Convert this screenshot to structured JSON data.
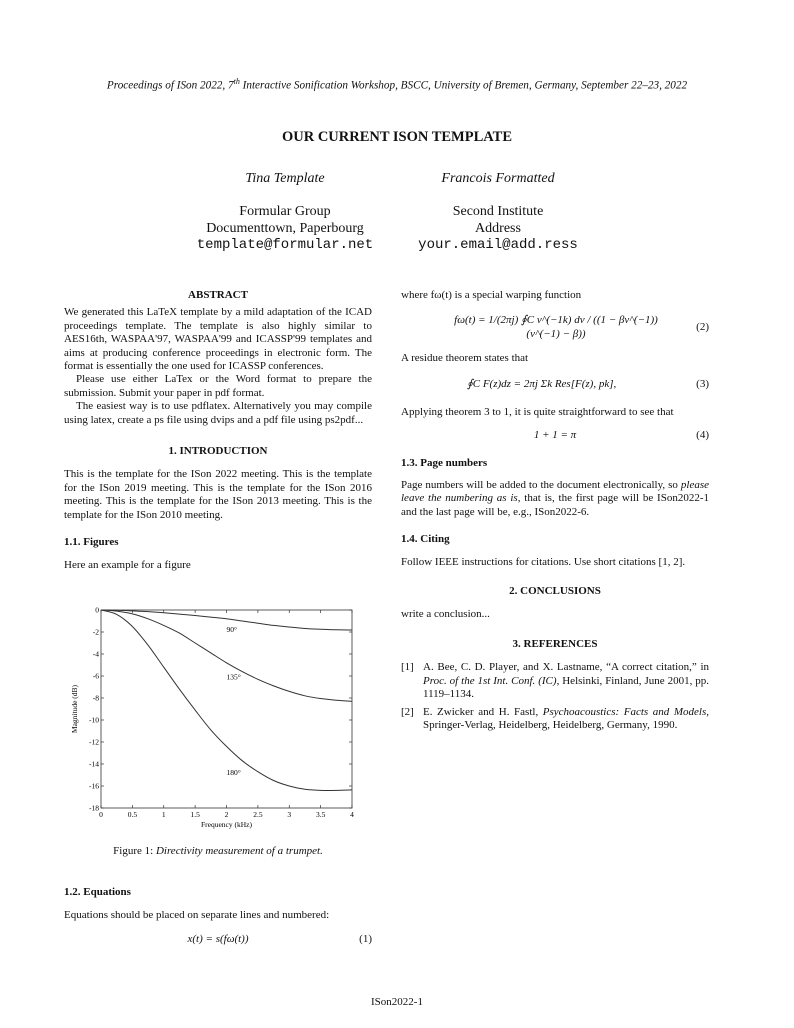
{
  "header": "Proceedings of ISon 2022, 7th Interactive Sonification Workshop, BSCC, University of Bremen, Germany, September 22–23, 2022",
  "header_pre": "Proceedings of ISon 2022, 7",
  "header_sup": "th",
  "header_post": " Interactive Sonification Workshop, BSCC, University of Bremen, Germany, September 22–23, 2022",
  "title": "OUR CURRENT ISON TEMPLATE",
  "authors": [
    {
      "name": "Tina Template",
      "org": "Formular Group",
      "address": "Documenttown, Paperbourg",
      "email": "template@formular.net"
    },
    {
      "name": "Francois Formatted",
      "org": "Second Institute",
      "address": "Address",
      "email": "your.email@add.ress"
    }
  ],
  "abstract": {
    "heading": "ABSTRACT",
    "paragraphs": [
      "We generated this LaTeX template by a mild adaptation of the ICAD proceedings template. The template is also highly similar to AES16th, WASPAA'97, WASPAA'99 and ICASSP'99 templates and aims at producing conference proceedings in electronic form. The format is essentially the one used for ICASSP conferences.",
      "Please use either LaTex or the Word format to prepare the submission. Submit your paper in pdf format.",
      "The easiest way is to use pdflatex. Alternatively you may compile using latex, create a ps file using dvips and a pdf file using ps2pdf..."
    ]
  },
  "intro": {
    "heading": "1. INTRODUCTION",
    "text": "This is the template for the ISon 2022 meeting. This is the template for the ISon 2019 meeting. This is the template for the ISon 2016 meeting. This is the template for the ISon 2013 meeting. This is the template for the ISon 2010 meeting."
  },
  "figures": {
    "heading": "1.1.  Figures",
    "text": "Here an example for a figure",
    "caption_label": "Figure 1: ",
    "caption": "Directivity measurement of a trumpet."
  },
  "equations": {
    "heading": "1.2.  Equations",
    "text": "Equations should be placed on separate lines and numbered:",
    "eq1": "x(t) = s(fω(t))",
    "eq1_num": "(1)"
  },
  "right": {
    "warp_text": "where fω(t) is a special warping function",
    "eq2": "fω(t) = 1/(2πj) ∮C ν^(−1k) dν / ((1 − βν^(−1))(ν^(−1) − β))",
    "eq2_num": "(2)",
    "residue_text": "A residue theorem states that",
    "eq3": "∮C F(z)dz = 2πj Σk Res[F(z), pk],",
    "eq3_num": "(3)",
    "apply_text": "Applying theorem 3 to 1, it is quite straightforward to see that",
    "eq4": "1 + 1 = π",
    "eq4_num": "(4)"
  },
  "page_numbers": {
    "heading": "1.3.  Page numbers",
    "pre": "Page numbers will be added to the document electronically, so ",
    "em": "please leave the numbering as is",
    "post": ", that is, the first page will be ISon2022-1 and the last page will be, e.g., ISon2022-6."
  },
  "citing": {
    "heading": "1.4.  Citing",
    "text": "Follow IEEE instructions for citations. Use short citations [1, 2]."
  },
  "conclusions": {
    "heading": "2. CONCLUSIONS",
    "text": "write a conclusion..."
  },
  "references": {
    "heading": "3. REFERENCES",
    "items": [
      {
        "num": "[1]",
        "pre": "A. Bee, C. D. Player, and X. Lastname, “A correct citation,” in ",
        "em": "Proc. of the 1st Int. Conf. (IC)",
        "post": ", Helsinki, Finland, June 2001, pp. 1119–1134."
      },
      {
        "num": "[2]",
        "pre": "E. Zwicker and H. Fastl, ",
        "em": "Psychoacoustics: Facts and Models",
        "post": ", Springer-Verlag, Heidelberg, Heidelberg, Germany, 1990."
      }
    ]
  },
  "footer": "ISon2022-1",
  "chart_data": {
    "type": "line",
    "title": "",
    "xlabel": "Frequency (kHz)",
    "ylabel": "Magnitude (dB)",
    "xlim": [
      0,
      4
    ],
    "ylim": [
      -18,
      0
    ],
    "xticks": [
      "0",
      "0.5",
      "1",
      "1.5",
      "2",
      "2.5",
      "3",
      "3.5",
      "4"
    ],
    "yticks": [
      "0",
      "-2",
      "-4",
      "-6",
      "-8",
      "-10",
      "-12",
      "-14",
      "-16",
      "-18"
    ],
    "grid": false,
    "x": [
      0,
      0.25,
      0.5,
      0.75,
      1,
      1.25,
      1.5,
      1.75,
      2,
      2.25,
      2.5,
      2.75,
      3,
      3.25,
      3.5,
      3.75,
      4
    ],
    "series": [
      {
        "values": [
          0,
          -0.02,
          -0.08,
          -0.15,
          -0.25,
          -0.37,
          -0.5,
          -0.65,
          -0.8,
          -1.0,
          -1.2,
          -1.4,
          -1.55,
          -1.68,
          -1.75,
          -1.8,
          -1.82
        ]
      },
      {
        "values": [
          0,
          -0.1,
          -0.35,
          -0.8,
          -1.4,
          -2.1,
          -3.0,
          -3.9,
          -4.8,
          -5.6,
          -6.3,
          -6.9,
          -7.4,
          -7.8,
          -8.05,
          -8.2,
          -8.3
        ]
      },
      {
        "values": [
          0,
          -0.4,
          -1.5,
          -3.2,
          -5.2,
          -7.2,
          -9.1,
          -10.9,
          -12.4,
          -13.7,
          -14.7,
          -15.5,
          -16.0,
          -16.3,
          -16.4,
          -16.4,
          -16.35
        ]
      }
    ],
    "annotations": [
      {
        "text": "90°",
        "x": 2.0,
        "y": -2.0
      },
      {
        "text": "135°",
        "x": 2.0,
        "y": -6.3
      },
      {
        "text": "180°",
        "x": 2.0,
        "y": -15.0
      }
    ]
  }
}
